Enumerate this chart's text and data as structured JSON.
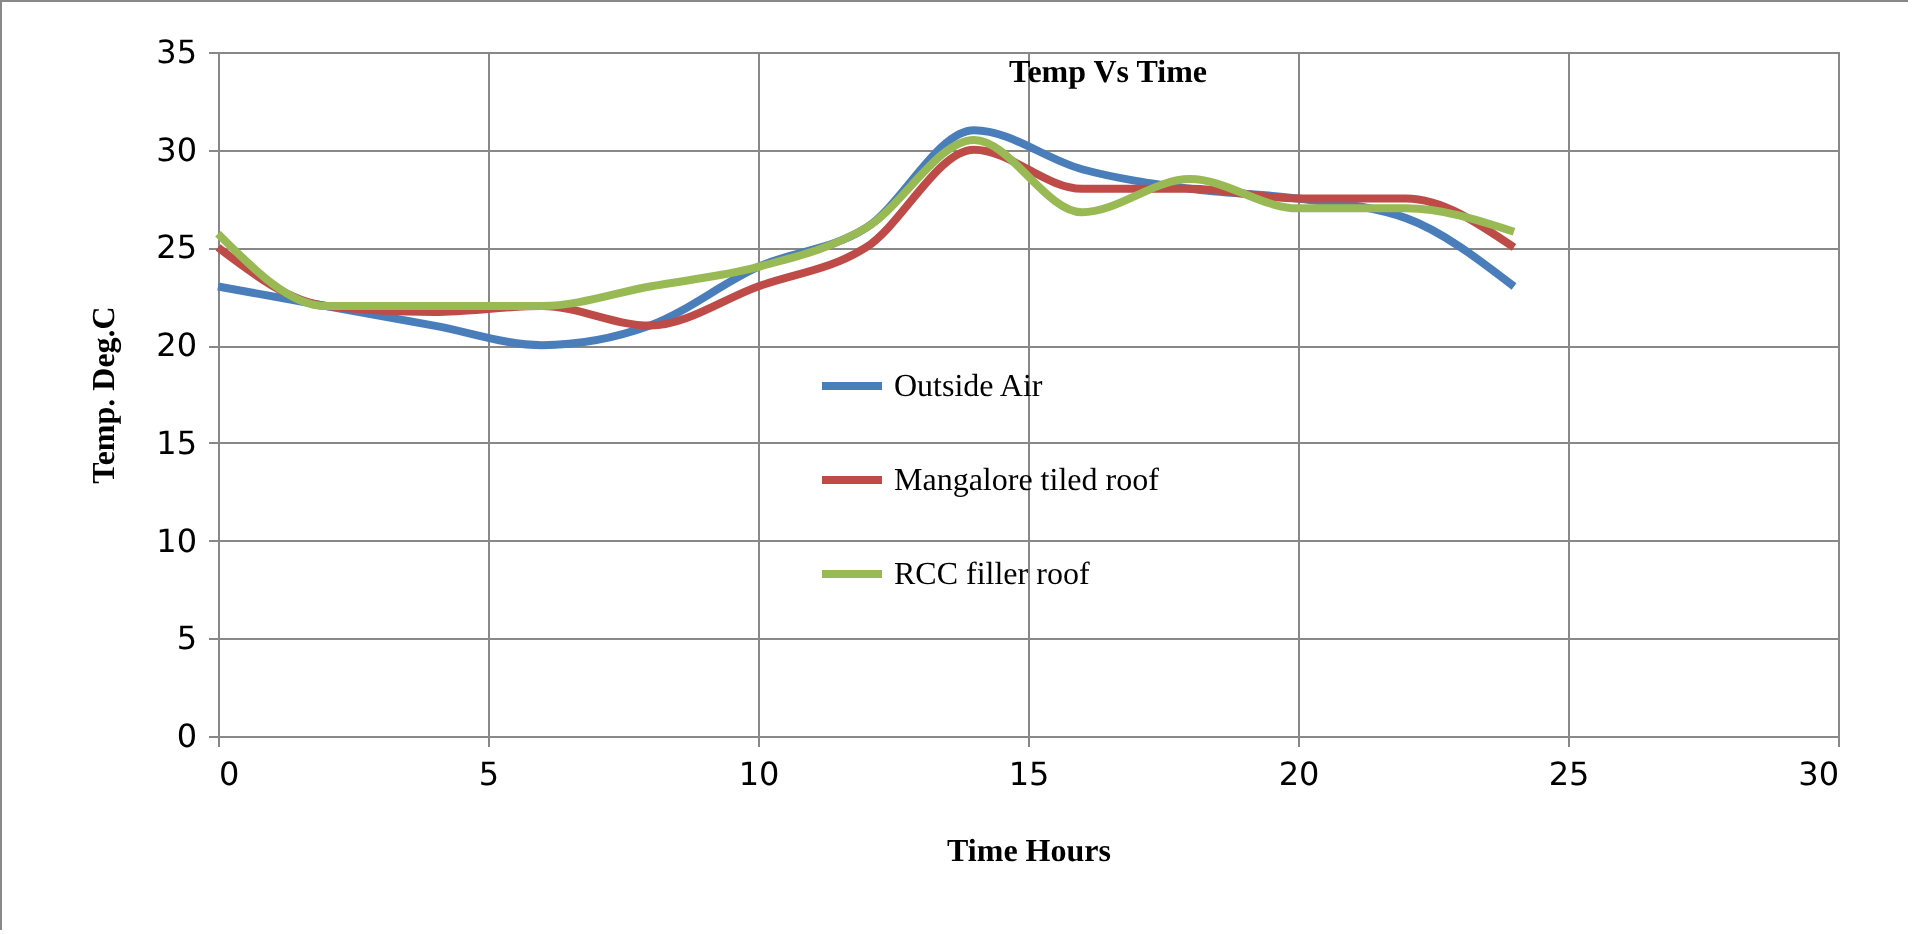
{
  "chart_data": {
    "type": "line",
    "title": "Temp Vs Time",
    "xlabel": "Time Hours",
    "ylabel": "Temp. Deg.C",
    "x": [
      0,
      2,
      4,
      6,
      8,
      10,
      12,
      14,
      16,
      18,
      20,
      22,
      24
    ],
    "series": [
      {
        "name": "Outside Air",
        "color": "#4a7ebb",
        "values": [
          23,
          22,
          21,
          20,
          21,
          24,
          26,
          31,
          29,
          28,
          27.5,
          26.5,
          23
        ]
      },
      {
        "name": "Mangalore tiled roof",
        "color": "#be4b48",
        "values": [
          25,
          22,
          21.7,
          22,
          21,
          23,
          25,
          30,
          28,
          28,
          27.5,
          27.5,
          25
        ]
      },
      {
        "name": "RCC filler roof",
        "color": "#98b954",
        "values": [
          25.7,
          22,
          22,
          22,
          23,
          24,
          26,
          30.5,
          26.8,
          28.5,
          27,
          27,
          25.8
        ]
      }
    ],
    "xlim": [
      0,
      30
    ],
    "xticks": [
      0,
      5,
      10,
      15,
      20,
      25,
      30
    ],
    "ylim": [
      0,
      35
    ],
    "yticks": [
      0,
      5,
      10,
      15,
      20,
      25,
      30,
      35
    ],
    "grid": true,
    "legend": "center",
    "marker": "none",
    "line_style": "solid"
  }
}
